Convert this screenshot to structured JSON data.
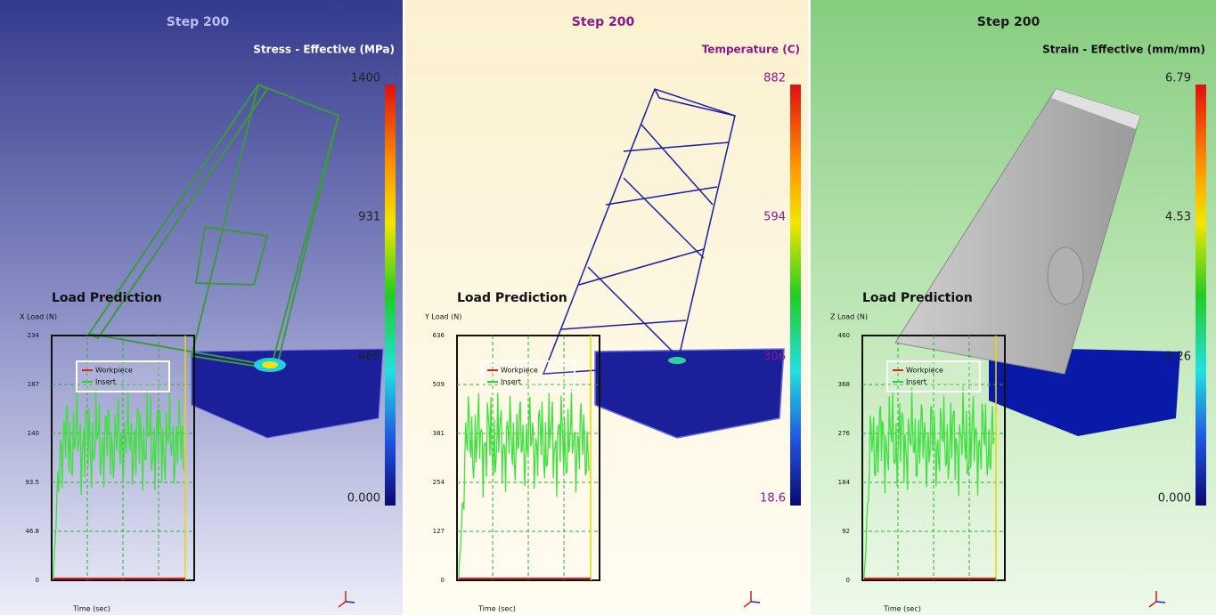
{
  "panels": [
    {
      "step": "Step 200",
      "legend_title": "Stress - Effective (MPa)",
      "scale_labels": [
        "1400",
        "931",
        "465",
        "0.000"
      ],
      "load_title": "Load Prediction",
      "axis_label": "X Load (N)",
      "yticks": [
        "234",
        "187",
        "140",
        "93.5",
        "46.8",
        "0"
      ],
      "x_label": "Time (sec)",
      "legend": [
        "Workpiece",
        "Insert"
      ]
    },
    {
      "step": "Step 200",
      "legend_title": "Temperature (C)",
      "scale_labels": [
        "882",
        "594",
        "306",
        "18.6"
      ],
      "load_title": "Load Prediction",
      "axis_label": "Y Load (N)",
      "yticks": [
        "636",
        "509",
        "381",
        "254",
        "127",
        "0"
      ],
      "x_label": "Time (sec)",
      "legend": [
        "Workpiece",
        "Insert"
      ]
    },
    {
      "step": "Step 200",
      "legend_title": "Strain - Effective (mm/mm)",
      "scale_labels": [
        "6.79",
        "4.53",
        "2.26",
        "0.000"
      ],
      "load_title": "Load Prediction",
      "axis_label": "Z Load (N)",
      "yticks": [
        "460",
        "368",
        "276",
        "184",
        "92",
        "0"
      ],
      "x_label": "Time (sec)",
      "legend": [
        "Workpiece",
        "Insert"
      ]
    }
  ]
}
